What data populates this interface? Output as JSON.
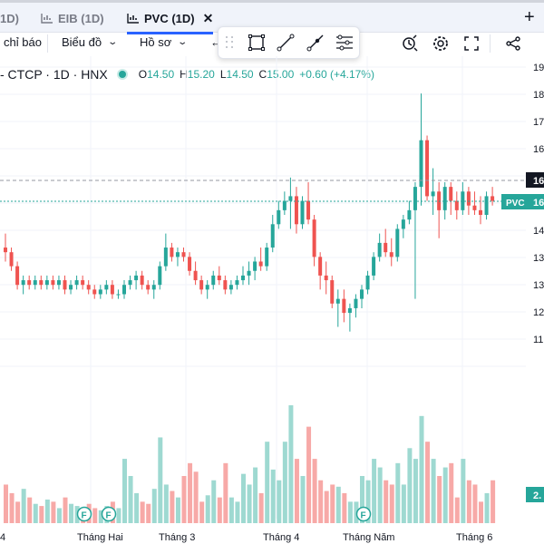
{
  "tabs": [
    {
      "label": "1D)",
      "active": false
    },
    {
      "label": "EIB (1D)",
      "active": false
    },
    {
      "label": "PVC (1D)",
      "active": true
    }
  ],
  "toolbar": {
    "indicators_label": "chỉ báo",
    "chart_label": "Biểu đồ",
    "profile_label": "Hồ sơ",
    "back_glyph": "←"
  },
  "legend": {
    "symbol_text": "- CTCP · 1D · HNX",
    "open_key": "O",
    "open": "14.50",
    "high_key": "H",
    "high": "15.20",
    "low_key": "L",
    "low": "14.50",
    "close_key": "C",
    "close": "15.00",
    "change": "+0.60 (+4.17%)"
  },
  "price_axis": {
    "ticks": [
      "19",
      "18",
      "17",
      "16",
      "16",
      "15",
      "14",
      "13",
      "13",
      "12",
      "11"
    ],
    "crosshair_label": "16",
    "symbol_tag": "PVC",
    "last_price_label": "16",
    "volume_label": "2."
  },
  "time_axis": {
    "labels": [
      "4",
      "Tháng Hai",
      "Tháng 3",
      "Tháng 4",
      "Tháng Năm",
      "Tháng 6"
    ]
  },
  "events": [
    "F",
    "F",
    "F"
  ],
  "colors": {
    "up": "#26a69a",
    "down": "#ef5350",
    "up_vol": "#9ed9d1",
    "down_vol": "#f7a9a7",
    "accent": "#2962ff"
  },
  "chart_data": {
    "type": "candlestick",
    "y_range": [
      12.5,
      19.3
    ],
    "candles": [
      [
        15.2,
        15.5,
        14.9,
        15.1
      ],
      [
        15.1,
        15.2,
        14.7,
        14.8
      ],
      [
        14.8,
        14.9,
        14.3,
        14.4
      ],
      [
        14.4,
        14.6,
        14.2,
        14.5
      ],
      [
        14.5,
        14.6,
        14.3,
        14.4
      ],
      [
        14.4,
        14.6,
        14.3,
        14.5
      ],
      [
        14.5,
        14.6,
        14.3,
        14.4
      ],
      [
        14.4,
        14.6,
        14.3,
        14.5
      ],
      [
        14.5,
        14.6,
        14.3,
        14.4
      ],
      [
        14.4,
        14.6,
        14.3,
        14.5
      ],
      [
        14.5,
        14.6,
        14.2,
        14.3
      ],
      [
        14.3,
        14.5,
        14.2,
        14.4
      ],
      [
        14.4,
        14.6,
        14.3,
        14.5
      ],
      [
        14.5,
        14.6,
        14.3,
        14.4
      ],
      [
        14.4,
        14.5,
        14.2,
        14.3
      ],
      [
        14.3,
        14.4,
        14.1,
        14.2
      ],
      [
        14.2,
        14.4,
        14.1,
        14.3
      ],
      [
        14.3,
        14.5,
        14.2,
        14.4
      ],
      [
        14.4,
        14.5,
        14.1,
        14.2
      ],
      [
        14.2,
        14.3,
        14.1,
        14.2
      ],
      [
        14.2,
        14.5,
        14.1,
        14.4
      ],
      [
        14.4,
        14.6,
        14.3,
        14.5
      ],
      [
        14.5,
        14.7,
        14.3,
        14.6
      ],
      [
        14.6,
        14.7,
        14.3,
        14.4
      ],
      [
        14.4,
        14.5,
        14.2,
        14.3
      ],
      [
        14.3,
        14.5,
        14.1,
        14.4
      ],
      [
        14.4,
        14.9,
        14.3,
        14.8
      ],
      [
        14.8,
        15.5,
        14.7,
        15.2
      ],
      [
        15.2,
        15.3,
        14.9,
        15.0
      ],
      [
        15.0,
        15.2,
        14.8,
        15.1
      ],
      [
        15.1,
        15.2,
        14.9,
        15.0
      ],
      [
        15.0,
        15.1,
        14.6,
        14.7
      ],
      [
        14.7,
        14.9,
        14.4,
        14.5
      ],
      [
        14.5,
        14.6,
        14.2,
        14.3
      ],
      [
        14.3,
        14.5,
        14.1,
        14.4
      ],
      [
        14.4,
        14.7,
        14.3,
        14.6
      ],
      [
        14.6,
        14.8,
        14.4,
        14.5
      ],
      [
        14.5,
        14.6,
        14.2,
        14.3
      ],
      [
        14.3,
        14.5,
        14.2,
        14.4
      ],
      [
        14.4,
        14.6,
        14.3,
        14.5
      ],
      [
        14.5,
        14.8,
        14.4,
        14.6
      ],
      [
        14.6,
        14.9,
        14.4,
        14.7
      ],
      [
        14.7,
        15.0,
        14.5,
        14.9
      ],
      [
        14.9,
        15.2,
        14.7,
        14.8
      ],
      [
        14.8,
        15.3,
        14.7,
        15.2
      ],
      [
        15.2,
        15.9,
        15.1,
        15.7
      ],
      [
        15.7,
        16.2,
        15.6,
        16.0
      ],
      [
        16.0,
        16.4,
        15.9,
        16.2
      ],
      [
        16.2,
        16.7,
        15.6,
        16.3
      ],
      [
        16.3,
        16.5,
        15.5,
        15.7
      ],
      [
        15.7,
        16.3,
        15.6,
        16.2
      ],
      [
        16.2,
        16.6,
        15.7,
        15.8
      ],
      [
        15.8,
        15.9,
        14.8,
        15.0
      ],
      [
        15.0,
        15.1,
        14.3,
        14.6
      ],
      [
        14.6,
        14.9,
        14.2,
        14.5
      ],
      [
        14.5,
        14.6,
        13.9,
        14.0
      ],
      [
        14.0,
        14.3,
        13.5,
        14.1
      ],
      [
        14.1,
        14.3,
        13.6,
        13.8
      ],
      [
        13.8,
        14.0,
        13.4,
        13.9
      ],
      [
        13.9,
        14.2,
        13.7,
        14.1
      ],
      [
        14.1,
        14.4,
        13.9,
        14.3
      ],
      [
        14.3,
        14.7,
        14.2,
        14.6
      ],
      [
        14.6,
        15.1,
        14.5,
        15.0
      ],
      [
        15.0,
        15.5,
        14.9,
        15.3
      ],
      [
        15.3,
        15.6,
        15.0,
        15.1
      ],
      [
        15.1,
        15.4,
        14.8,
        15.0
      ],
      [
        15.0,
        15.7,
        14.9,
        15.6
      ],
      [
        15.6,
        15.9,
        15.4,
        15.8
      ],
      [
        15.8,
        16.2,
        15.7,
        16.0
      ],
      [
        16.0,
        16.6,
        14.1,
        16.5
      ],
      [
        16.5,
        18.5,
        16.1,
        17.5
      ],
      [
        17.5,
        17.6,
        16.2,
        16.3
      ],
      [
        16.3,
        16.9,
        15.9,
        16.4
      ],
      [
        16.4,
        16.6,
        15.4,
        16.0
      ],
      [
        16.0,
        16.6,
        15.8,
        16.5
      ],
      [
        16.5,
        16.6,
        15.9,
        16.2
      ],
      [
        16.2,
        16.4,
        15.8,
        16.0
      ],
      [
        16.0,
        16.6,
        15.9,
        16.4
      ],
      [
        16.4,
        16.5,
        15.9,
        16.1
      ],
      [
        16.1,
        16.4,
        15.9,
        16.0
      ],
      [
        16.0,
        16.3,
        15.7,
        15.9
      ],
      [
        15.9,
        16.4,
        15.8,
        16.3
      ],
      [
        16.3,
        16.5,
        16.1,
        16.2
      ]
    ],
    "volumes": [
      18,
      14,
      10,
      16,
      12,
      9,
      8,
      11,
      10,
      7,
      12,
      9,
      8,
      6,
      9,
      7,
      6,
      8,
      10,
      7,
      30,
      22,
      14,
      10,
      9,
      16,
      40,
      18,
      15,
      12,
      22,
      28,
      24,
      10,
      13,
      20,
      12,
      28,
      12,
      10,
      23,
      18,
      26,
      14,
      38,
      25,
      20,
      38,
      55,
      30,
      22,
      45,
      30,
      20,
      15,
      18,
      17,
      14,
      10,
      10,
      22,
      20,
      30,
      26,
      20,
      18,
      28,
      18,
      35,
      30,
      50,
      38,
      30,
      22,
      26,
      28,
      12,
      30,
      20,
      18,
      10,
      14,
      20
    ]
  }
}
